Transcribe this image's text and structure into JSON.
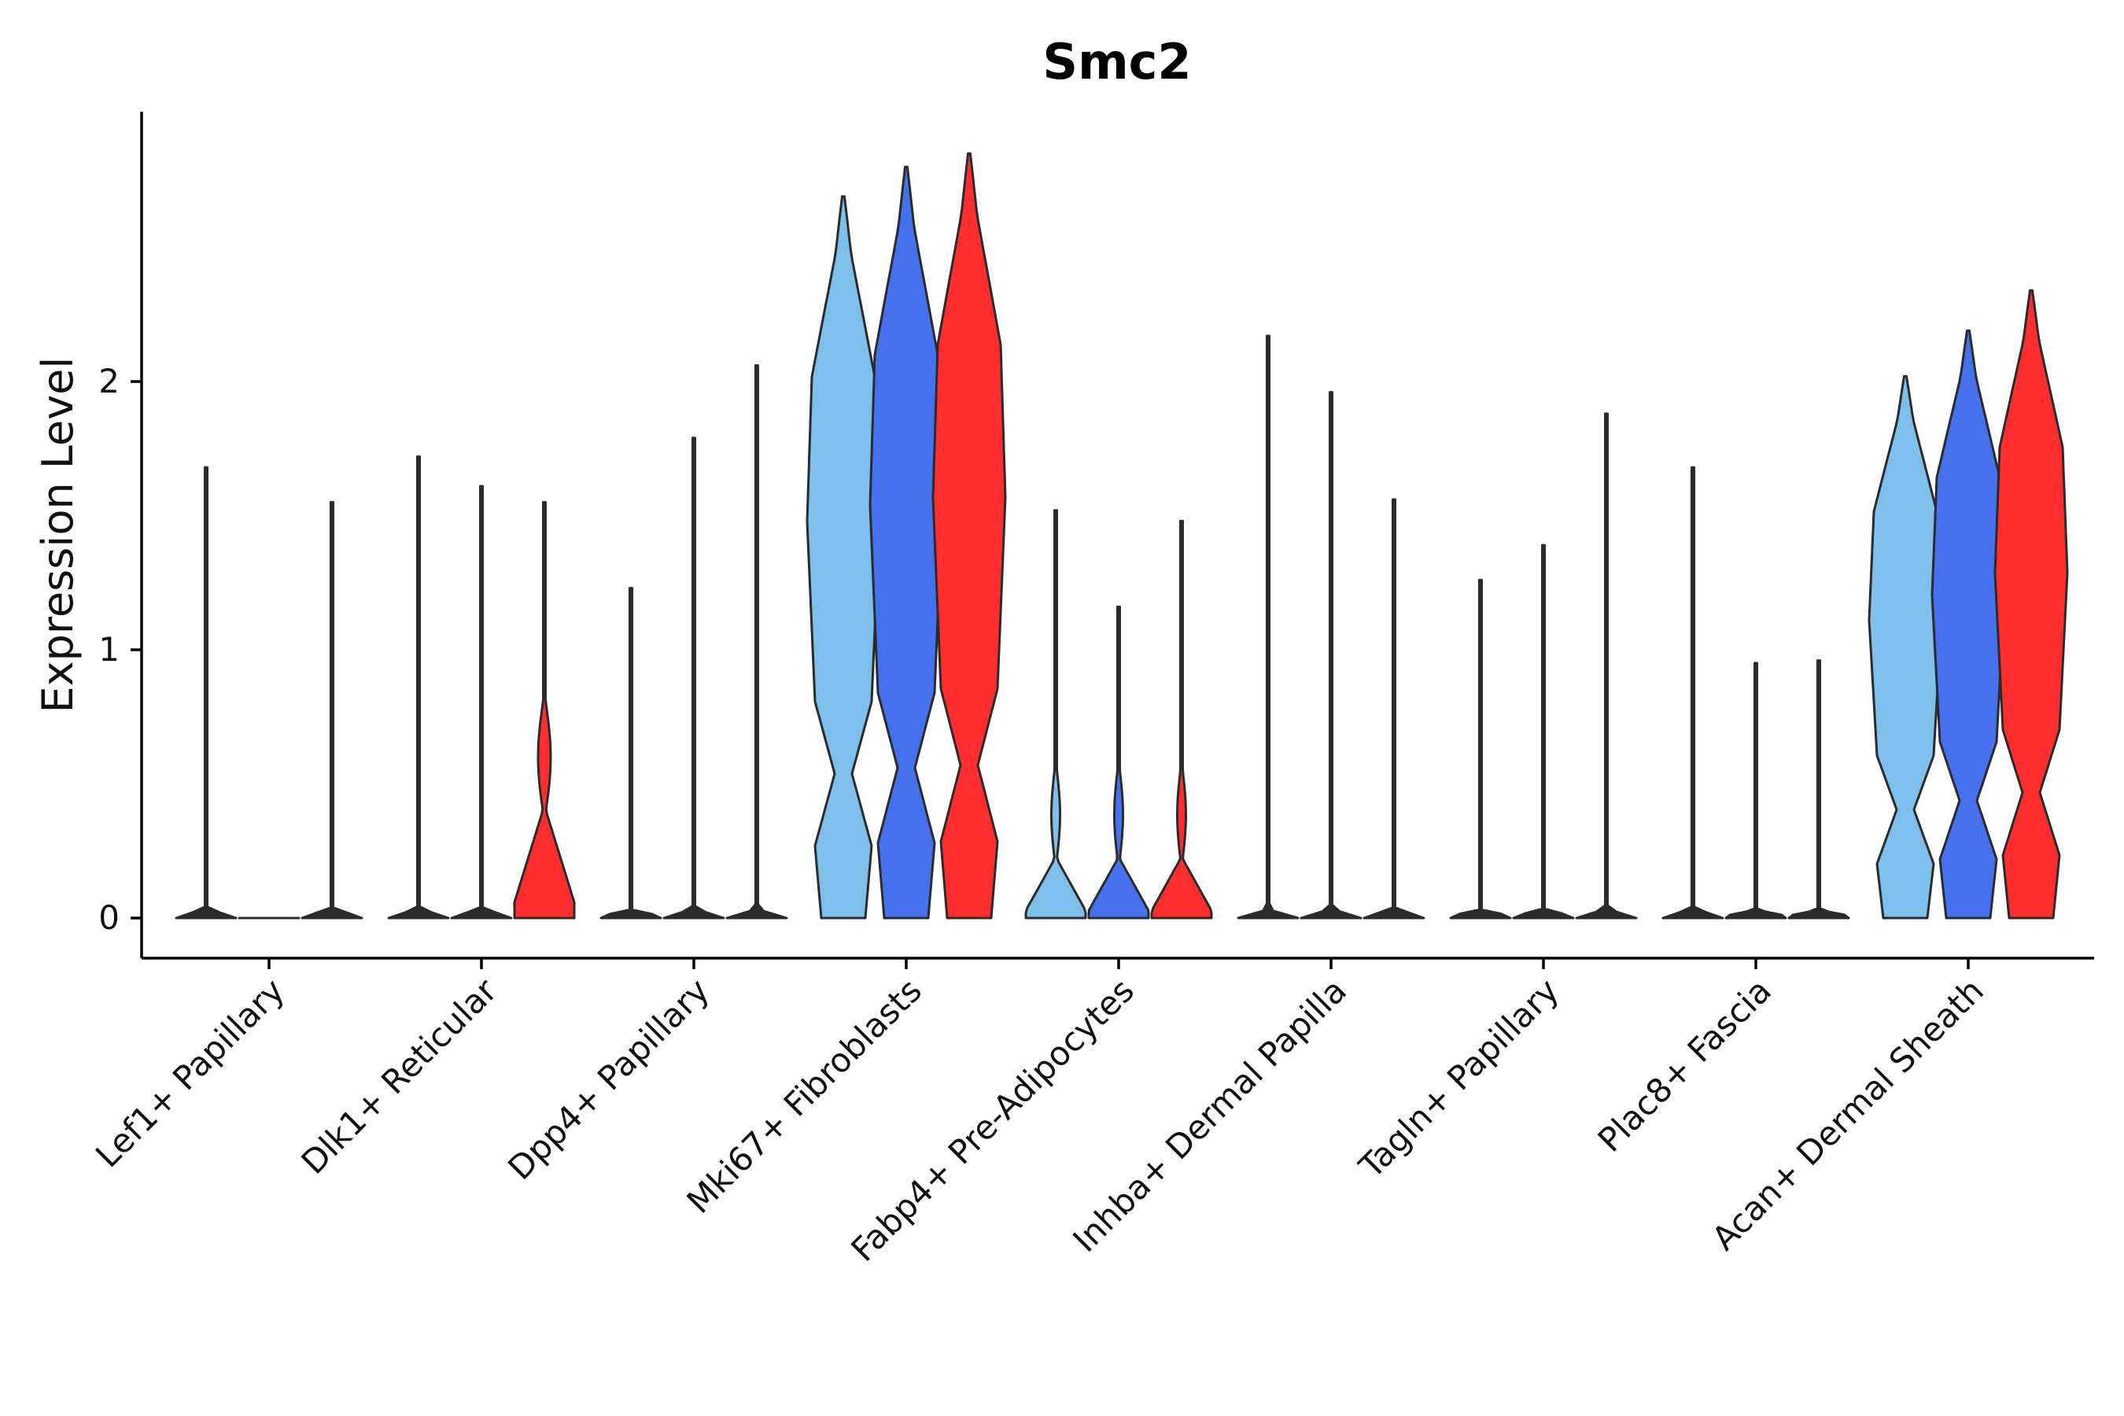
{
  "chart_data": {
    "type": "violin",
    "title": "Smc2",
    "xlabel": "",
    "ylabel": "Expression Level",
    "ylim": [
      -0.15,
      3.0
    ],
    "yticks": [
      0,
      1,
      2
    ],
    "legend": "none",
    "grid": false,
    "groups": [
      "Lef1+ Papillary",
      "Dlk1+ Reticular",
      "Dpp4+ Papillary",
      "Mki67+ Fibroblasts",
      "Fabp4+ Pre-Adipocytes",
      "Inhba+ Dermal Papilla",
      "Tagln+ Papillary",
      "Plac8+ Fascia",
      "Acan+ Dermal Sheath"
    ],
    "split_colors": [
      "#7fbfeb",
      "#4671ee",
      "#ff2d2d"
    ],
    "series": [
      {
        "name": "split-1",
        "color": "#7fbfeb",
        "max": [
          1.68,
          1.72,
          1.23,
          2.69,
          1.52,
          2.17,
          1.26,
          1.68,
          2.02
        ]
      },
      {
        "name": "split-2",
        "color": "#4671ee",
        "max": [
          0.0,
          1.61,
          1.79,
          2.8,
          1.16,
          1.96,
          1.39,
          0.95,
          2.19
        ]
      },
      {
        "name": "split-3",
        "color": "#ff2d2d",
        "max": [
          1.55,
          1.55,
          2.06,
          2.85,
          1.48,
          1.56,
          1.88,
          0.96,
          2.34
        ]
      }
    ]
  }
}
